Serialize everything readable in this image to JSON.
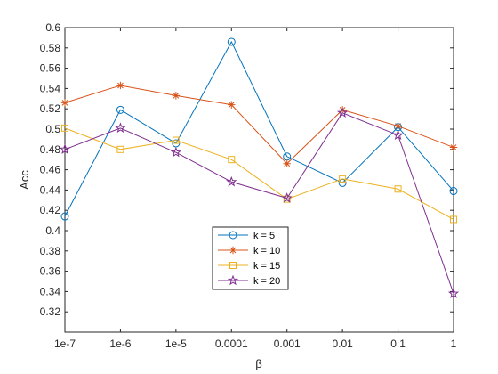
{
  "chart_data": {
    "type": "line",
    "title": "",
    "xlabel": "β",
    "ylabel": "Acc",
    "categories": [
      "1e-7",
      "1e-6",
      "1e-5",
      "0.0001",
      "0.001",
      "0.01",
      "0.1",
      "1"
    ],
    "ylim": [
      0.3,
      0.6
    ],
    "yticks": [
      "0.32",
      "0.34",
      "0.36",
      "0.38",
      "0.4",
      "0.42",
      "0.44",
      "0.46",
      "0.48",
      "0.5",
      "0.52",
      "0.54",
      "0.56",
      "0.58",
      "0.6"
    ],
    "grid": false,
    "legend_position": "bottom-center",
    "series": [
      {
        "name": "k = 5",
        "color": "#0072bd",
        "marker": "circle",
        "values": [
          0.414,
          0.519,
          0.486,
          0.586,
          0.473,
          0.447,
          0.502,
          0.439
        ]
      },
      {
        "name": "k = 10",
        "color": "#d95319",
        "marker": "asterisk",
        "values": [
          0.526,
          0.543,
          0.533,
          0.524,
          0.466,
          0.519,
          0.503,
          0.482
        ]
      },
      {
        "name": "k = 15",
        "color": "#edb120",
        "marker": "square",
        "values": [
          0.501,
          0.48,
          0.489,
          0.47,
          0.431,
          0.451,
          0.441,
          0.411
        ]
      },
      {
        "name": "k = 20",
        "color": "#7e2f8e",
        "marker": "pentagram",
        "values": [
          0.48,
          0.501,
          0.477,
          0.448,
          0.432,
          0.516,
          0.494,
          0.338
        ]
      }
    ]
  }
}
